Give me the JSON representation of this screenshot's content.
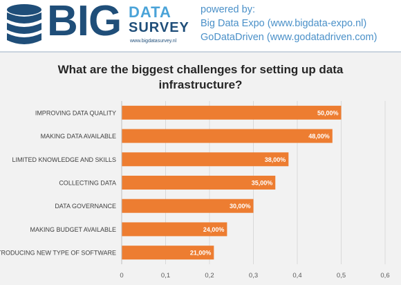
{
  "header": {
    "logo_text": "BIG",
    "logo_data": "DATA",
    "logo_survey": "SURVEY",
    "logo_url": "www.bigdatasurvey.nl",
    "powered_by": "powered by:",
    "sponsor_1": "Big Data Expo (www.bigdata-expo.nl)",
    "sponsor_2": "GoDataDriven (www.godatadriven.com)"
  },
  "colors": {
    "bar": "#ed7d31",
    "logo_dark": "#1f4e79",
    "logo_light": "#4aa3d8",
    "powered_text": "#4a90c8"
  },
  "chart_data": {
    "type": "bar",
    "orientation": "horizontal",
    "title": "What are the biggest challenges for setting up data infrastructure?",
    "categories": [
      "IMPROVING DATA QUALITY",
      "MAKING DATA AVAILABLE",
      "LIMITED KNOWLEDGE AND SKILLS",
      "COLLECTING DATA",
      "DATA GOVERNANCE",
      "MAKING BUDGET AVAILABLE",
      "INTRODUCING NEW TYPE OF SOFTWARE"
    ],
    "values": [
      0.5,
      0.48,
      0.38,
      0.35,
      0.3,
      0.24,
      0.21
    ],
    "data_labels": [
      "50,00%",
      "48,00%",
      "38,00%",
      "35,00%",
      "30,00%",
      "24,00%",
      "21,00%"
    ],
    "xticks": [
      "0",
      "0,1",
      "0,2",
      "0,3",
      "0,4",
      "0,5",
      "0,6"
    ],
    "xlim": [
      0,
      0.6
    ],
    "grid": true,
    "legend": "none"
  }
}
